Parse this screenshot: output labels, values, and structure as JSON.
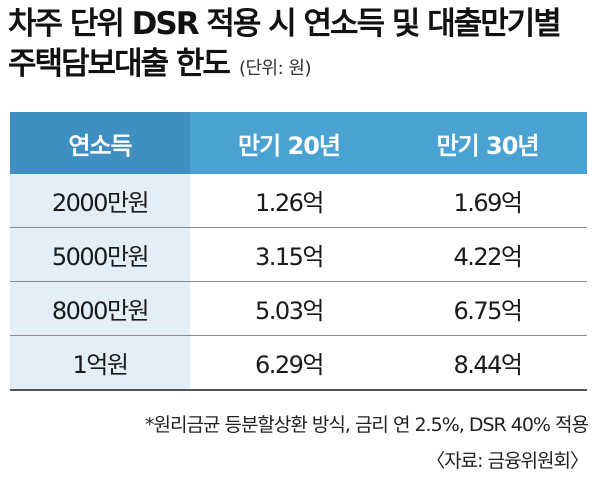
{
  "title_line1": "차주 단위 DSR 적용 시 연소득 및 대출만기별",
  "title_line2": "주택담보대출 한도",
  "unit": "(단위: 원)",
  "chart_data": {
    "type": "table",
    "columns": [
      "연소득",
      "만기 20년",
      "만기 30년"
    ],
    "rows": [
      {
        "label": "2000만원",
        "values": [
          "1.26억",
          "1.69억"
        ]
      },
      {
        "label": "5000만원",
        "values": [
          "3.15억",
          "4.22억"
        ]
      },
      {
        "label": "8000만원",
        "values": [
          "5.03억",
          "6.75억"
        ]
      },
      {
        "label": "1억원",
        "values": [
          "6.29억",
          "8.44억"
        ]
      }
    ]
  },
  "footnote": "*원리금균 등분할상환 방식, 금리 연 2.5%, DSR 40% 적용",
  "source": "〈자료: 금융위원회〉",
  "colors": {
    "header_bg": "#4aa2d2",
    "row_label_bg": "#e3eff8"
  }
}
